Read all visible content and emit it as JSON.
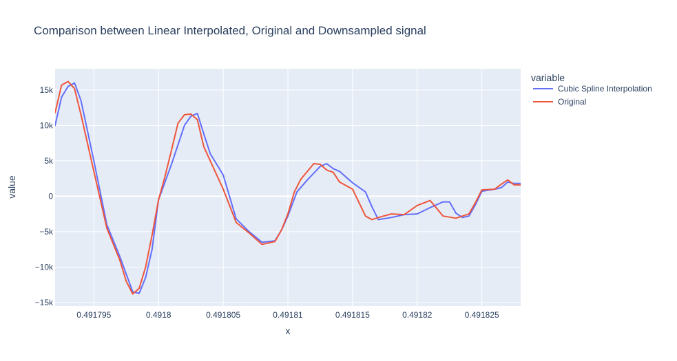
{
  "chart_data": {
    "type": "line",
    "title": "Comparison between Linear Interpolated, Original and Downsampled signal",
    "xlabel": "x",
    "ylabel": "value",
    "xlim": [
      0.491792,
      0.491828
    ],
    "ylim": [
      -15500,
      18000
    ],
    "x_ticks": [
      {
        "value": 0.491795,
        "label": "0.491795"
      },
      {
        "value": 0.4918,
        "label": "0.4918"
      },
      {
        "value": 0.491805,
        "label": "0.491805"
      },
      {
        "value": 0.49181,
        "label": "0.49181"
      },
      {
        "value": 0.491815,
        "label": "0.491815"
      },
      {
        "value": 0.49182,
        "label": "0.49182"
      },
      {
        "value": 0.491825,
        "label": "0.491825"
      }
    ],
    "y_ticks": [
      {
        "value": 15000,
        "label": "15k"
      },
      {
        "value": 10000,
        "label": "10k"
      },
      {
        "value": 5000,
        "label": "5k"
      },
      {
        "value": 0,
        "label": "0"
      },
      {
        "value": -5000,
        "label": "−5k"
      },
      {
        "value": -10000,
        "label": "−10k"
      },
      {
        "value": -15000,
        "label": "−15k"
      }
    ],
    "grid": true,
    "legend": {
      "title": "variable",
      "position": "right"
    },
    "series": [
      {
        "name": "Cubic Spline Interpolation",
        "color": "#636efa",
        "x": [
          0.491792,
          0.4917925,
          0.491793,
          0.4917935,
          0.491794,
          0.491795,
          0.491796,
          0.491797,
          0.491798,
          0.4917985,
          0.491799,
          0.4917995,
          0.4918,
          0.491801,
          0.491802,
          0.4918025,
          0.491803,
          0.4918035,
          0.491804,
          0.4918045,
          0.491805,
          0.491806,
          0.491807,
          0.491808,
          0.491809,
          0.4918095,
          0.49181,
          0.4918107,
          0.4918115,
          0.4918125,
          0.491813,
          0.4918135,
          0.491814,
          0.491815,
          0.491816,
          0.4918165,
          0.491817,
          0.491818,
          0.491819,
          0.49182,
          0.491821,
          0.491822,
          0.4918225,
          0.491823,
          0.4918235,
          0.491824,
          0.4918245,
          0.491825,
          0.491826,
          0.4918265,
          0.491827,
          0.4918275,
          0.491828
        ],
        "values": [
          10000,
          14000,
          15500,
          16000,
          13500,
          5000,
          -4000,
          -8500,
          -13500,
          -13700,
          -11500,
          -7500,
          -500,
          4500,
          10000,
          11300,
          11700,
          8800,
          6000,
          4500,
          3000,
          -3200,
          -5000,
          -6500,
          -6300,
          -4800,
          -2800,
          600,
          2300,
          4200,
          4600,
          3900,
          3500,
          1900,
          600,
          -1500,
          -3300,
          -3000,
          -2600,
          -2500,
          -1600,
          -800,
          -800,
          -2400,
          -3000,
          -2800,
          -1200,
          700,
          1000,
          1200,
          2000,
          1800,
          1800
        ]
      },
      {
        "name": "Original",
        "color": "#ef553b",
        "x": [
          0.491792,
          0.4917925,
          0.491793,
          0.4917935,
          0.491794,
          0.491795,
          0.491796,
          0.491797,
          0.4917975,
          0.491798,
          0.4917985,
          0.491799,
          0.4917995,
          0.4918,
          0.4918005,
          0.491801,
          0.4918015,
          0.491802,
          0.4918025,
          0.491803,
          0.4918035,
          0.491804,
          0.491805,
          0.491806,
          0.491807,
          0.491808,
          0.491809,
          0.4918095,
          0.49181,
          0.4918105,
          0.491811,
          0.491812,
          0.4918125,
          0.491813,
          0.4918135,
          0.491814,
          0.491815,
          0.491816,
          0.4918165,
          0.491817,
          0.491818,
          0.491819,
          0.49182,
          0.491821,
          0.491822,
          0.491823,
          0.491824,
          0.4918245,
          0.491825,
          0.491826,
          0.4918265,
          0.491827,
          0.4918275,
          0.491828
        ],
        "values": [
          11800,
          15700,
          16200,
          15200,
          11500,
          3500,
          -4500,
          -9000,
          -12000,
          -13800,
          -13000,
          -10000,
          -5500,
          -500,
          2800,
          6500,
          10300,
          11500,
          11600,
          10800,
          7000,
          5000,
          1000,
          -3700,
          -5200,
          -6800,
          -6400,
          -4800,
          -2500,
          600,
          2400,
          4600,
          4500,
          3700,
          3400,
          2000,
          1000,
          -2800,
          -3300,
          -3000,
          -2500,
          -2600,
          -1300,
          -600,
          -2800,
          -3100,
          -2500,
          -900,
          900,
          1000,
          1700,
          2300,
          1600,
          1600
        ]
      }
    ]
  }
}
